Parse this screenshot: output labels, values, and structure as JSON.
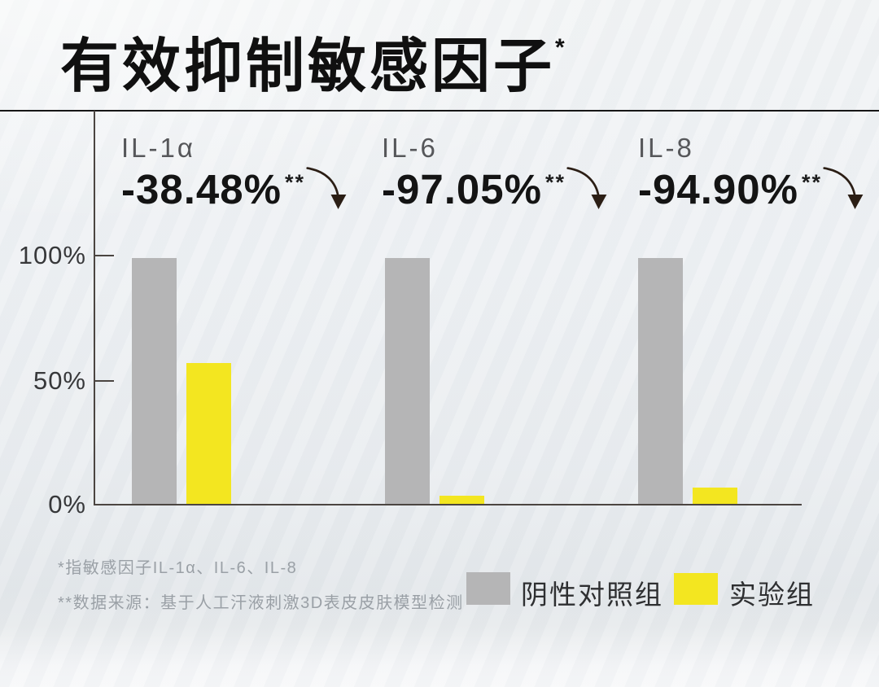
{
  "title": {
    "text": "有效抑制敏感因子",
    "superscript": "*"
  },
  "chart_data": {
    "type": "bar",
    "title": "有效抑制敏感因子*",
    "categories": [
      "IL-1α",
      "IL-6",
      "IL-8"
    ],
    "series": [
      {
        "name": "阴性对照组",
        "color": "#b5b5b6",
        "values": [
          100,
          100,
          100
        ],
        "drawn_pct": [
          98.3,
          98.3,
          98.3
        ]
      },
      {
        "name": "实验组",
        "color": "#f3e620",
        "values": [
          61.52,
          2.95,
          5.1
        ],
        "drawn_pct": [
          56.3,
          3.2,
          6.5
        ]
      }
    ],
    "annotations": [
      {
        "category": "IL-1α",
        "change": "-38.48%",
        "significance": "**"
      },
      {
        "category": "IL-6",
        "change": "-97.05%",
        "significance": "**"
      },
      {
        "category": "IL-8",
        "change": "-94.90%",
        "significance": "**"
      }
    ],
    "yticks": {
      "t100": "100%",
      "t50": "50%",
      "t0": "0%"
    },
    "ylim": [
      0,
      100
    ],
    "grid": false,
    "legend_position": "bottom-right"
  },
  "groups": [
    {
      "cytokine": "IL-1α",
      "change": "-38.48%",
      "significance": "**"
    },
    {
      "cytokine": "IL-6",
      "change": "-97.05%",
      "significance": "**"
    },
    {
      "cytokine": "IL-8",
      "change": "-94.90%",
      "significance": "**"
    }
  ],
  "footnotes": [
    "*指敏感因子IL-1α、IL-6、IL-8",
    "**数据来源：基于人工汗液刺激3D表皮皮肤模型检测"
  ],
  "legend": [
    {
      "label": "阴性对照组",
      "color": "#b5b5b6"
    },
    {
      "label": "实验组",
      "color": "#f3e620"
    }
  ],
  "colors": {
    "axis": "#4b4541",
    "title_text": "#101010",
    "cytokine_label": "#56575a",
    "footnote_text": "#9aa0a6",
    "arrow": "#2b1e15"
  }
}
